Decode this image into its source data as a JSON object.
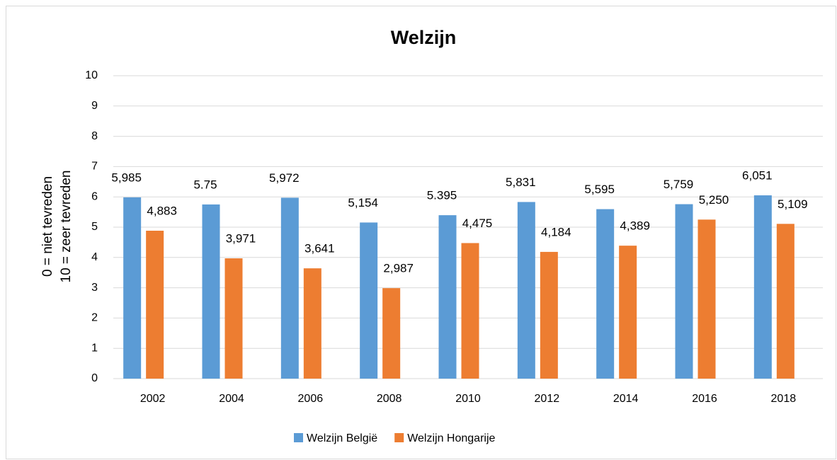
{
  "chart_data": {
    "type": "bar",
    "title": "Welzijn",
    "ylabel": [
      "0 = niet tevreden",
      "10 = zeer tevreden"
    ],
    "categories": [
      "2002",
      "2004",
      "2006",
      "2008",
      "2010",
      "2012",
      "2014",
      "2016",
      "2018"
    ],
    "series": [
      {
        "name": "Welzijn België",
        "color": "#5b9bd5",
        "values": [
          5.985,
          5.75,
          5.972,
          5.154,
          5.395,
          5.831,
          5.595,
          5.759,
          6.051
        ],
        "value_labels": [
          "5,985",
          "5.75",
          "5,972",
          "5,154",
          "5.395",
          "5,831",
          "5,595",
          "5,759",
          "6,051"
        ]
      },
      {
        "name": "Welzijn Hongarije",
        "color": "#ed7d31",
        "values": [
          4.883,
          3.971,
          3.641,
          2.987,
          4.475,
          4.184,
          4.389,
          5.25,
          5.109
        ],
        "value_labels": [
          "4,883",
          "3,971",
          "3,641",
          "2,987",
          "4,475",
          "4,184",
          "4,389",
          "5,250",
          "5,109"
        ]
      }
    ],
    "ylim": [
      0,
      10
    ],
    "yticks": [
      0,
      1,
      2,
      3,
      4,
      5,
      6,
      7,
      8,
      9,
      10
    ],
    "grid": true,
    "legend": "bottom"
  }
}
